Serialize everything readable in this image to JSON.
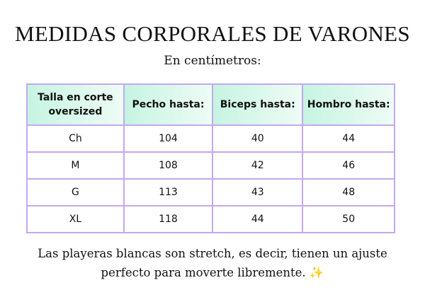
{
  "title": "MEDIDAS CORPORALES DE VARONES",
  "subtitle": "En centímetros:",
  "table": {
    "headers": [
      "Talla en corte oversized",
      "Pecho hasta:",
      "Biceps hasta:",
      "Hombro hasta:"
    ],
    "rows": [
      [
        "Ch",
        "104",
        "40",
        "44"
      ],
      [
        "M",
        "108",
        "42",
        "46"
      ],
      [
        "G",
        "113",
        "43",
        "48"
      ],
      [
        "XL",
        "118",
        "44",
        "50"
      ]
    ]
  },
  "note": {
    "line1": "Las playeras blancas son stretch, es decir, tienen un ajuste",
    "line2": "perfecto para moverte libremente.",
    "icon": "sparkles-icon",
    "icon_glyph": "✨"
  },
  "colors": {
    "border": "#c4a8ee",
    "header_bg": "#c6f4e2"
  }
}
